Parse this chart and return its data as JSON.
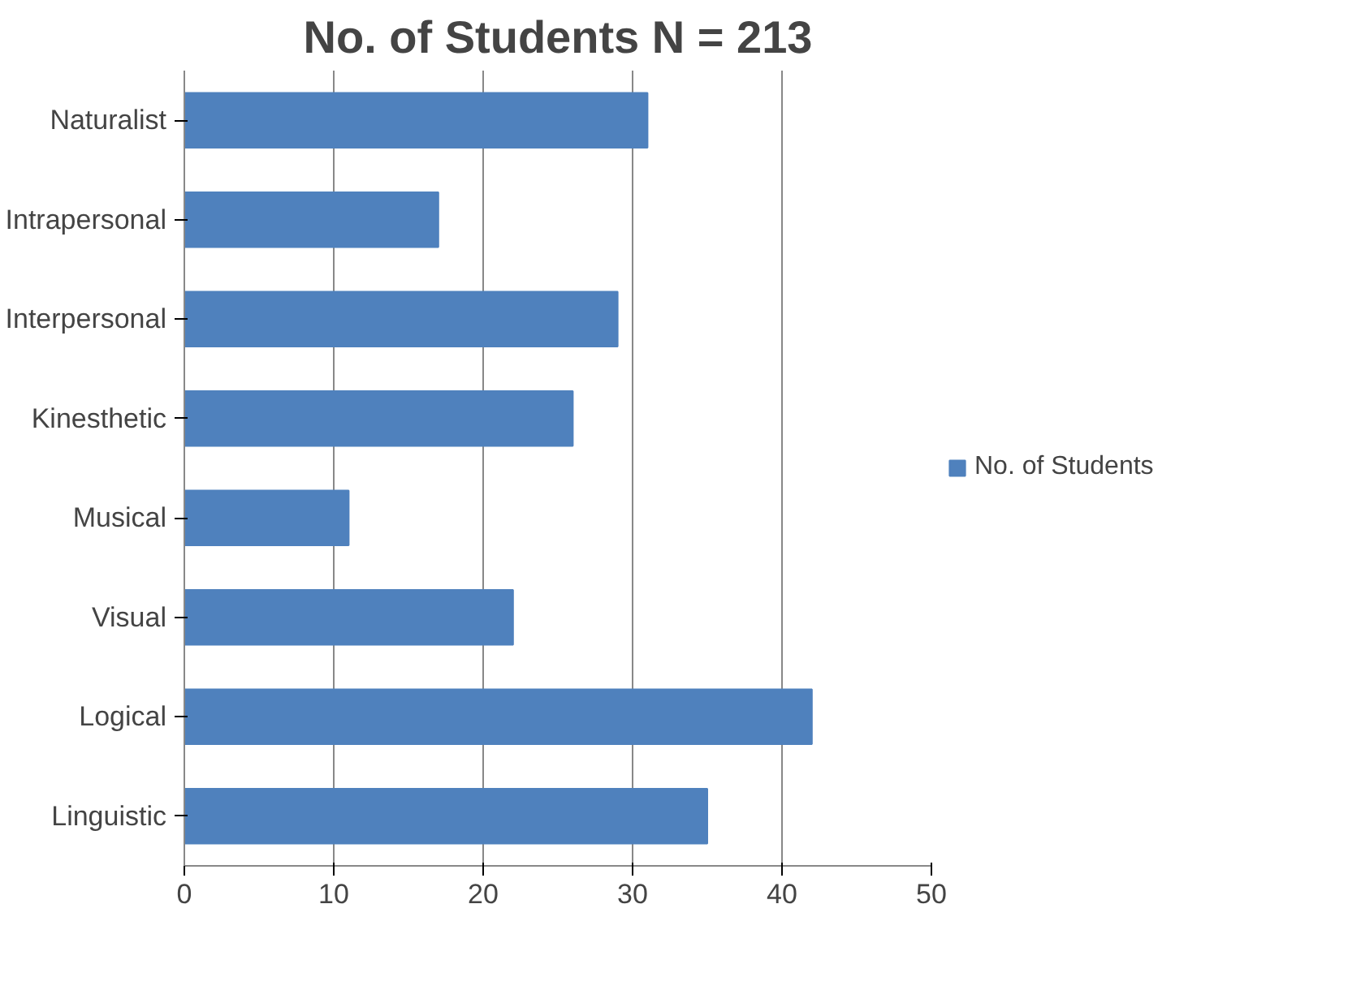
{
  "chart_data": {
    "type": "bar",
    "orientation": "horizontal",
    "title": "No. of Students N = 213",
    "categories": [
      "Naturalist",
      "Intrapersonal",
      "Interpersonal",
      "Kinesthetic",
      "Musical",
      "Visual",
      "Logical",
      "Linguistic"
    ],
    "series": [
      {
        "name": "No. of Students",
        "color": "#4f81bd",
        "values": [
          31,
          17,
          29,
          26,
          11,
          22,
          42,
          35
        ]
      }
    ],
    "xlim": [
      0,
      50
    ],
    "xticks": [
      0,
      10,
      20,
      30,
      40,
      50
    ],
    "grid": "x",
    "legend": "right"
  }
}
